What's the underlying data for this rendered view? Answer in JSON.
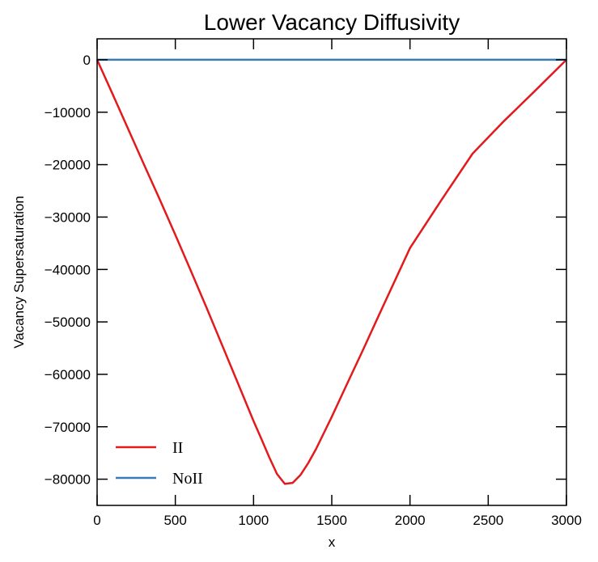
{
  "chart_data": {
    "type": "line",
    "title": "Lower Vacancy Diffusivity",
    "xlabel": "x",
    "ylabel": "Vacancy Supersaturation",
    "xlim": [
      0,
      3000
    ],
    "ylim": [
      -85000,
      4000
    ],
    "xticks": [
      0,
      500,
      1000,
      1500,
      2000,
      2500,
      3000
    ],
    "xtick_labels": [
      "0",
      "500",
      "1000",
      "1500",
      "2000",
      "2500",
      "3000"
    ],
    "yticks": [
      0,
      -10000,
      -20000,
      -30000,
      -40000,
      -50000,
      -60000,
      -70000,
      -80000
    ],
    "ytick_labels": [
      "0",
      "−10000",
      "−20000",
      "−30000",
      "−40000",
      "−50000",
      "−60000",
      "−70000",
      "−80000"
    ],
    "grid": false,
    "legend_position": "lower-left",
    "series": [
      {
        "name": "II",
        "color": "#e31a1c",
        "x": [
          0,
          100,
          200,
          300,
          400,
          500,
          600,
          700,
          800,
          900,
          1000,
          1050,
          1100,
          1150,
          1200,
          1250,
          1300,
          1350,
          1400,
          1500,
          1600,
          1700,
          1800,
          2000,
          2200,
          2400,
          2600,
          2800,
          3000
        ],
        "y": [
          0,
          -6600,
          -13300,
          -20000,
          -26600,
          -33400,
          -40300,
          -47300,
          -54500,
          -61700,
          -68900,
          -72300,
          -75800,
          -79000,
          -80900,
          -80700,
          -79200,
          -76900,
          -74200,
          -68100,
          -61700,
          -55300,
          -48800,
          -35900,
          -26800,
          -17900,
          -11700,
          -5900,
          0
        ]
      },
      {
        "name": "NoII",
        "color": "#3a7ab5",
        "x": [
          0,
          3000
        ],
        "y": [
          0,
          0
        ]
      }
    ]
  }
}
